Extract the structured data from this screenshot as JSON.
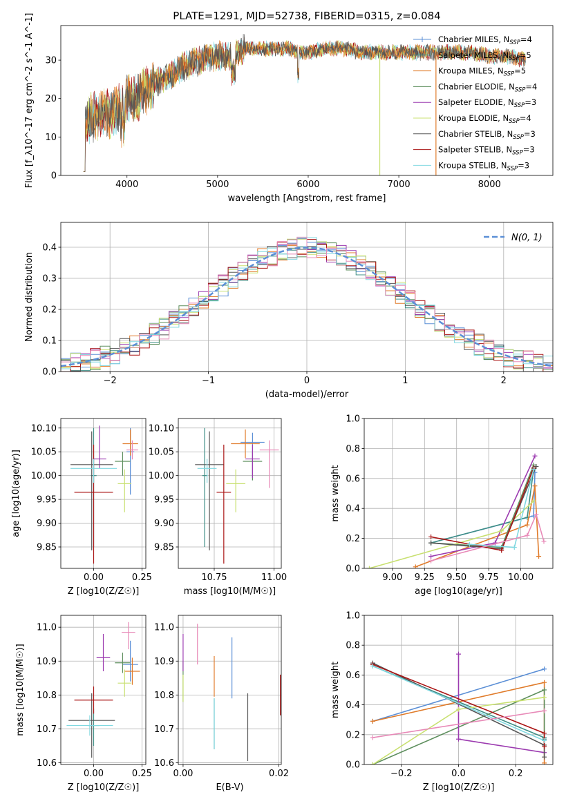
{
  "title": "PLATE=1291, MJD=52738, FIBERID=0315, z=0.084",
  "colors": {
    "Chabrier MILES": "#5b8fd6",
    "Salpeter MILES": "#3f8f86",
    "Kroupa MILES": "#e07b2a",
    "Chabrier ELODIE": "#5e8f5e",
    "Salpeter ELODIE": "#9c3bb0",
    "Kroupa ELODIE": "#c8e070",
    "Chabrier STELIB": "#555555",
    "Salpeter STELIB": "#aa1515",
    "Kroupa STELIB": "#80d8e0",
    "pink": "#e88ab8",
    "normal": "#5b8fd6"
  },
  "chart_data": [
    {
      "id": "spectrum",
      "type": "line",
      "xlabel": "wavelength [Angstrom, rest frame]",
      "ylabel": "Flux [f_λ10^-17 erg cm^-2 s^-1 A^-1]",
      "xlim": [
        3270,
        8700
      ],
      "ylim": [
        0,
        39
      ],
      "xticks": [
        4000,
        5000,
        6000,
        7000,
        8000
      ],
      "yticks": [
        0,
        10,
        20,
        30
      ],
      "legend_position": "upper right",
      "legend": [
        {
          "label": "Chabrier MILES",
          "sub": "N_SSP=4",
          "color": "#5b8fd6"
        },
        {
          "label": "Salpeter MILES",
          "sub": "N_SSP=5",
          "color": "#3f8f86"
        },
        {
          "label": "Kroupa MILES",
          "sub": "N_SSP=5",
          "color": "#e07b2a"
        },
        {
          "label": "Chabrier ELODIE",
          "sub": "N_SSP=4",
          "color": "#5e8f5e"
        },
        {
          "label": "Salpeter ELODIE",
          "sub": "N_SSP=3",
          "color": "#9c3bb0"
        },
        {
          "label": "Kroupa ELODIE",
          "sub": "N_SSP=4",
          "color": "#c8e070"
        },
        {
          "label": "Chabrier STELIB",
          "sub": "N_SSP=3",
          "color": "#555555"
        },
        {
          "label": "Salpeter STELIB",
          "sub": "N_SSP=3",
          "color": "#aa1515"
        },
        {
          "label": "Kroupa STELIB",
          "sub": "N_SSP=3",
          "color": "#80d8e0"
        }
      ],
      "envelope": {
        "x": [
          3500,
          3600,
          3700,
          3800,
          3900,
          4000,
          4100,
          4200,
          4300,
          4400,
          4500,
          4600,
          4700,
          4800,
          4900,
          5000,
          5100,
          5200,
          5300,
          5400,
          5500,
          5600,
          5700,
          5800,
          5900,
          6000,
          6200,
          6400,
          6600,
          6800,
          7000,
          7200,
          7400,
          7600,
          7800,
          8000,
          8200,
          8400
        ],
        "y": [
          13,
          15,
          16,
          16,
          17,
          20,
          20,
          22,
          24,
          25,
          26,
          28,
          29,
          30,
          31,
          31,
          31,
          32,
          33,
          33,
          33,
          33,
          33,
          33,
          32,
          32,
          33,
          33,
          32,
          32,
          32,
          32,
          32,
          32,
          32,
          31,
          31,
          30
        ]
      },
      "dropouts": [
        {
          "x": 6790,
          "color": "#c8e070"
        },
        {
          "x": 7410,
          "color": "#e07b2a"
        }
      ]
    },
    {
      "id": "residuals",
      "type": "step",
      "xlabel": "(data-model)/error",
      "ylabel": "Normed distribution",
      "xlim": [
        -2.5,
        2.5
      ],
      "ylim": [
        0,
        0.48
      ],
      "xticks": [
        -2,
        -1,
        0,
        1,
        2
      ],
      "yticks": [
        0.0,
        0.1,
        0.2,
        0.3,
        0.4
      ],
      "legend_position": "upper right",
      "normal_label": "N(0, 1)",
      "grid": true
    },
    {
      "id": "age_vs_z",
      "type": "errorbar",
      "xlabel": "Z [log10(Z/Z☉)]",
      "ylabel": "age [log10(age/yr)]",
      "xlim": [
        -0.17,
        0.27
      ],
      "ylim": [
        9.805,
        10.12
      ],
      "xticks": [
        0.0,
        0.25
      ],
      "yticks": [
        9.85,
        9.9,
        9.95,
        10.0,
        10.05,
        10.1
      ],
      "grid": true,
      "points": [
        {
          "color": "#5b8fd6",
          "x": 0.19,
          "xerr": 0.02,
          "y": 10.05,
          "yerr": [
            0.09,
            0.05
          ]
        },
        {
          "color": "#3f8f86",
          "x": 0.0,
          "xerr": 0.015,
          "y": 10.0,
          "yerr": [
            0.15,
            0.1
          ]
        },
        {
          "color": "#e07b2a",
          "x": 0.19,
          "xerr": 0.04,
          "y": 10.067,
          "yerr": [
            0.025,
            0.03
          ]
        },
        {
          "color": "#5e8f5e",
          "x": 0.15,
          "xerr": 0.04,
          "y": 10.03,
          "yerr": [
            0.03,
            0.02
          ]
        },
        {
          "color": "#9c3bb0",
          "x": 0.03,
          "xerr": 0.035,
          "y": 10.035,
          "yerr": [
            0.02,
            0.07
          ]
        },
        {
          "color": "#c8e070",
          "x": 0.16,
          "xerr": 0.035,
          "y": 9.983,
          "yerr": [
            0.06,
            0.03
          ]
        },
        {
          "color": "#555555",
          "x": -0.01,
          "xerr": 0.11,
          "y": 10.023,
          "yerr": [
            0.18,
            0.07
          ]
        },
        {
          "color": "#aa1515",
          "x": 0.0,
          "xerr": 0.1,
          "y": 9.965,
          "yerr": [
            0.15,
            0.1
          ]
        },
        {
          "color": "#80d8e0",
          "x": 0.0,
          "xerr": 0.12,
          "y": 10.015,
          "yerr": [
            0.03,
            0.02
          ]
        },
        {
          "color": "#e88ab8",
          "x": 0.2,
          "xerr": 0.03,
          "y": 10.054,
          "yerr": [
            0.02,
            0.02
          ]
        }
      ]
    },
    {
      "id": "age_vs_mass",
      "type": "errorbar",
      "xlabel": "mass [log10(M/M☉)]",
      "ylabel": "",
      "xlim": [
        10.6,
        11.03
      ],
      "ylim": [
        9.805,
        10.12
      ],
      "xticks": [
        10.75,
        11.0
      ],
      "yticks": [
        9.85,
        9.9,
        9.95,
        10.0,
        10.05,
        10.1
      ],
      "grid": true,
      "points": [
        {
          "color": "#5b8fd6",
          "x": 10.91,
          "xerr": 0.05,
          "y": 10.07,
          "yerr": [
            0.08,
            0.02
          ]
        },
        {
          "color": "#3f8f86",
          "x": 10.71,
          "xerr": 0.01,
          "y": 10.0,
          "yerr": [
            0.15,
            0.1
          ]
        },
        {
          "color": "#e07b2a",
          "x": 10.88,
          "xerr": 0.06,
          "y": 10.067,
          "yerr": [
            0.03,
            0.03
          ]
        },
        {
          "color": "#5e8f5e",
          "x": 10.91,
          "xerr": 0.04,
          "y": 10.03,
          "yerr": [
            0.04,
            0.02
          ]
        },
        {
          "color": "#9c3bb0",
          "x": 10.91,
          "xerr": 0.03,
          "y": 10.035,
          "yerr": [
            0.04,
            0.03
          ]
        },
        {
          "color": "#c8e070",
          "x": 10.84,
          "xerr": 0.04,
          "y": 9.983,
          "yerr": [
            0.06,
            0.03
          ]
        },
        {
          "color": "#555555",
          "x": 10.73,
          "xerr": 0.06,
          "y": 10.023,
          "yerr": [
            0.18,
            0.07
          ]
        },
        {
          "color": "#aa1515",
          "x": 10.79,
          "xerr": 0.03,
          "y": 9.965,
          "yerr": [
            0.15,
            0.1
          ]
        },
        {
          "color": "#80d8e0",
          "x": 10.72,
          "xerr": 0.04,
          "y": 10.015,
          "yerr": [
            0.03,
            0.02
          ]
        },
        {
          "color": "#e88ab8",
          "x": 10.98,
          "xerr": 0.04,
          "y": 10.054,
          "yerr": [
            0.08,
            0.02
          ]
        }
      ]
    },
    {
      "id": "weight_vs_age",
      "type": "line",
      "xlabel": "age [log10(age/yr)]",
      "ylabel": "mass weight",
      "xlim": [
        8.78,
        10.25
      ],
      "ylim": [
        0.0,
        1.0
      ],
      "xticks": [
        9.0,
        9.25,
        9.5,
        9.75,
        10.0
      ],
      "yticks": [
        0.0,
        0.2,
        0.4,
        0.6,
        0.8,
        1.0
      ],
      "grid": true,
      "series": [
        {
          "color": "#5b8fd6",
          "x": [
            9.3,
            10.1,
            10.11
          ],
          "y": [
            0.17,
            0.35,
            0.64
          ]
        },
        {
          "color": "#3f8f86",
          "x": [
            9.3,
            10.05,
            10.1
          ],
          "y": [
            0.17,
            0.34,
            0.66
          ]
        },
        {
          "color": "#e07b2a",
          "x": [
            9.18,
            10.05,
            10.11,
            10.14
          ],
          "y": [
            0.01,
            0.29,
            0.55,
            0.08
          ]
        },
        {
          "color": "#5e8f5e",
          "x": [
            9.3,
            9.85,
            10.1
          ],
          "y": [
            0.17,
            0.14,
            0.69
          ]
        },
        {
          "color": "#9c3bb0",
          "x": [
            9.3,
            9.8,
            10.11
          ],
          "y": [
            0.08,
            0.17,
            0.75
          ]
        },
        {
          "color": "#c8e070",
          "x": [
            8.82,
            9.85,
            10.1
          ],
          "y": [
            0.0,
            0.25,
            0.45
          ]
        },
        {
          "color": "#555555",
          "x": [
            9.3,
            9.85,
            10.12
          ],
          "y": [
            0.17,
            0.13,
            0.68
          ]
        },
        {
          "color": "#aa1515",
          "x": [
            9.3,
            9.85,
            10.1
          ],
          "y": [
            0.21,
            0.12,
            0.67
          ]
        },
        {
          "color": "#80d8e0",
          "x": [
            9.6,
            9.95,
            10.1
          ],
          "y": [
            0.16,
            0.14,
            0.66
          ]
        },
        {
          "color": "#e88ab8",
          "x": [
            9.3,
            10.05,
            10.12,
            10.18
          ],
          "y": [
            0.05,
            0.22,
            0.36,
            0.18
          ]
        }
      ]
    },
    {
      "id": "mass_vs_z",
      "type": "errorbar",
      "xlabel": "Z [log10(Z/Z☉)]",
      "ylabel": "mass [log10(M/M☉)]",
      "xlim": [
        -0.17,
        0.27
      ],
      "ylim": [
        10.595,
        11.035
      ],
      "xticks": [
        0.0,
        0.25
      ],
      "yticks": [
        10.6,
        10.7,
        10.8,
        10.9,
        11.0
      ],
      "grid": true,
      "points": [
        {
          "color": "#5b8fd6",
          "x": 0.19,
          "xerr": 0.04,
          "y": 10.89,
          "yerr": [
            0.05,
            0.07
          ]
        },
        {
          "color": "#3f8f86",
          "x": 0.0,
          "xerr": 0.03,
          "y": 10.71,
          "yerr": [
            0.06,
            0.05
          ]
        },
        {
          "color": "#e07b2a",
          "x": 0.2,
          "xerr": 0.04,
          "y": 10.87,
          "yerr": [
            0.04,
            0.04
          ]
        },
        {
          "color": "#5e8f5e",
          "x": 0.15,
          "xerr": 0.04,
          "y": 10.895,
          "yerr": [
            0.03,
            0.03
          ]
        },
        {
          "color": "#9c3bb0",
          "x": 0.05,
          "xerr": 0.035,
          "y": 10.91,
          "yerr": [
            0.04,
            0.07
          ]
        },
        {
          "color": "#c8e070",
          "x": 0.16,
          "xerr": 0.035,
          "y": 10.835,
          "yerr": [
            0.04,
            0.04
          ]
        },
        {
          "color": "#555555",
          "x": -0.01,
          "xerr": 0.12,
          "y": 10.725,
          "yerr": [
            0.11,
            0.08
          ]
        },
        {
          "color": "#aa1515",
          "x": 0.0,
          "xerr": 0.1,
          "y": 10.785,
          "yerr": [
            0.04,
            0.04
          ]
        },
        {
          "color": "#80d8e0",
          "x": -0.02,
          "xerr": 0.12,
          "y": 10.71,
          "yerr": [
            0.03,
            0.03
          ]
        },
        {
          "color": "#e88ab8",
          "x": 0.18,
          "xerr": 0.035,
          "y": 10.985,
          "yerr": [
            0.05,
            0.03
          ]
        }
      ]
    },
    {
      "id": "mass_vs_ebv",
      "type": "errorbar",
      "xlabel": "E(B-V)",
      "ylabel": "",
      "xlim": [
        -0.001,
        0.0205
      ],
      "ylim": [
        10.595,
        11.035
      ],
      "xticks": [
        0.0,
        0.02
      ],
      "yticks": [
        10.6,
        10.7,
        10.8,
        10.9,
        11.0
      ],
      "grid": true,
      "points": [
        {
          "color": "#5b8fd6",
          "x": 0.0102,
          "y": 10.88,
          "yerr": [
            0.09,
            0.09
          ]
        },
        {
          "color": "#3f8f86",
          "x": 0.0065,
          "y": 10.71,
          "yerr": [
            0.07,
            0.08
          ]
        },
        {
          "color": "#e07b2a",
          "x": 0.0065,
          "y": 10.855,
          "yerr": [
            0.06,
            0.06
          ]
        },
        {
          "color": "#5e8f5e",
          "x": 0.0,
          "y": 10.84,
          "yerr": [
            0.06,
            0.06
          ]
        },
        {
          "color": "#9c3bb0",
          "x": 0.0,
          "y": 10.93,
          "yerr": [
            0.06,
            0.05
          ]
        },
        {
          "color": "#c8e070",
          "x": 0.0,
          "y": 10.82,
          "yerr": [
            0.04,
            0.04
          ]
        },
        {
          "color": "#555555",
          "x": 0.0135,
          "y": 10.725,
          "yerr": [
            0.12,
            0.08
          ]
        },
        {
          "color": "#aa1515",
          "x": 0.0203,
          "y": 10.8,
          "yerr": [
            0.06,
            0.06
          ]
        },
        {
          "color": "#80d8e0",
          "x": 0.0065,
          "y": 10.72,
          "yerr": [
            0.08,
            0.07
          ]
        },
        {
          "color": "#e88ab8",
          "x": 0.003,
          "y": 10.95,
          "yerr": [
            0.06,
            0.06
          ]
        }
      ]
    },
    {
      "id": "weight_vs_z",
      "type": "line",
      "xlabel": "Z [log10(Z/Z☉)]",
      "ylabel": "mass weight",
      "xlim": [
        -0.33,
        0.33
      ],
      "ylim": [
        0.0,
        1.0
      ],
      "xticks": [
        -0.2,
        0.0,
        0.2
      ],
      "yticks": [
        0.0,
        0.2,
        0.4,
        0.6,
        0.8,
        1.0
      ],
      "grid": true,
      "series": [
        {
          "color": "#5b8fd6",
          "x": [
            -0.3,
            0.3
          ],
          "y": [
            0.29,
            0.64
          ]
        },
        {
          "color": "#3f8f86",
          "x": [
            -0.3,
            0.3,
            0.3
          ],
          "y": [
            0.66,
            0.18,
            0.17
          ]
        },
        {
          "color": "#e07b2a",
          "x": [
            -0.3,
            0.3,
            0.3
          ],
          "y": [
            0.29,
            0.55,
            0.01
          ]
        },
        {
          "color": "#5e8f5e",
          "x": [
            -0.3,
            0.3,
            0.3
          ],
          "y": [
            0.0,
            0.5,
            0.13
          ]
        },
        {
          "color": "#9c3bb0",
          "x": [
            0.0,
            0.0,
            0.3
          ],
          "y": [
            0.74,
            0.17,
            0.08
          ]
        },
        {
          "color": "#c8e070",
          "x": [
            -0.3,
            0.0,
            0.3
          ],
          "y": [
            0.0,
            0.37,
            0.45
          ]
        },
        {
          "color": "#555555",
          "x": [
            -0.3,
            0.3,
            0.3
          ],
          "y": [
            0.68,
            0.13,
            0.05
          ]
        },
        {
          "color": "#aa1515",
          "x": [
            -0.3,
            0.3,
            0.3
          ],
          "y": [
            0.67,
            0.21,
            0.12
          ]
        },
        {
          "color": "#80d8e0",
          "x": [
            -0.3,
            0.3
          ],
          "y": [
            0.66,
            0.16
          ]
        },
        {
          "color": "#e88ab8",
          "x": [
            -0.3,
            0.3
          ],
          "y": [
            0.18,
            0.36
          ]
        }
      ]
    }
  ]
}
